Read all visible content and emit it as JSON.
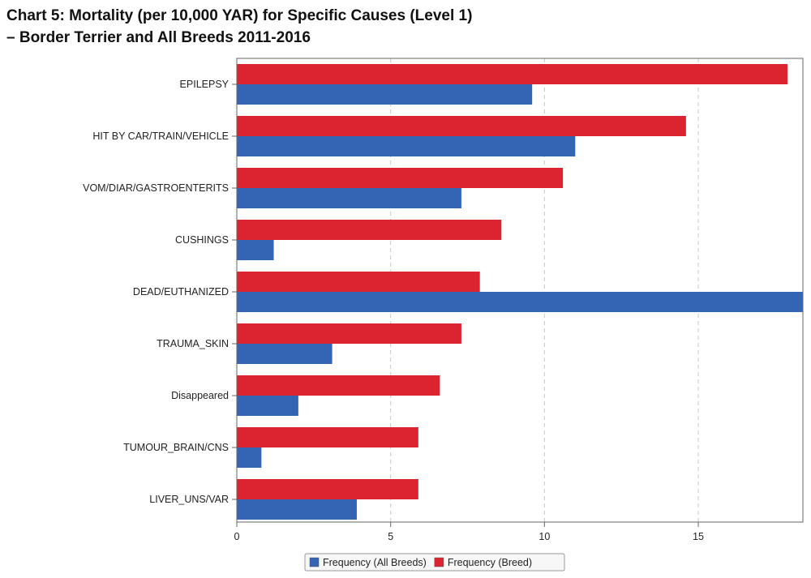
{
  "chart_data": {
    "type": "bar",
    "orientation": "horizontal",
    "title_line1": "Chart 5: Mortality (per 10,000 YAR) for Specific Causes (Level 1)",
    "title_line2": "–  Border Terrier and All Breeds 2011-2016",
    "categories": [
      "EPILEPSY",
      "HIT BY CAR/TRAIN/VEHICLE",
      "VOM/DIAR/GASTROENTERITS",
      "CUSHINGS",
      "DEAD/EUTHANIZED",
      "TRAUMA_SKIN",
      "Disappeared",
      "TUMOUR_BRAIN/CNS",
      "LIVER_UNS/VAR"
    ],
    "series": [
      {
        "name": "Frequency (Breed)",
        "color": "#dc2430",
        "values": [
          17.9,
          14.6,
          10.6,
          8.6,
          7.9,
          7.3,
          6.6,
          5.9,
          5.9
        ]
      },
      {
        "name": "Frequency (All Breeds)",
        "color": "#3465b5",
        "values": [
          9.6,
          11.0,
          7.3,
          1.2,
          18.4,
          3.1,
          2.0,
          0.8,
          3.9
        ]
      }
    ],
    "xlim": [
      0,
      18.4
    ],
    "x_ticks": [
      0,
      5,
      10,
      15
    ],
    "grid": "vertical-dashed",
    "legend": {
      "placement": "bottom-center",
      "items": [
        "Frequency (All Breeds)",
        "Frequency (Breed)"
      ]
    }
  }
}
